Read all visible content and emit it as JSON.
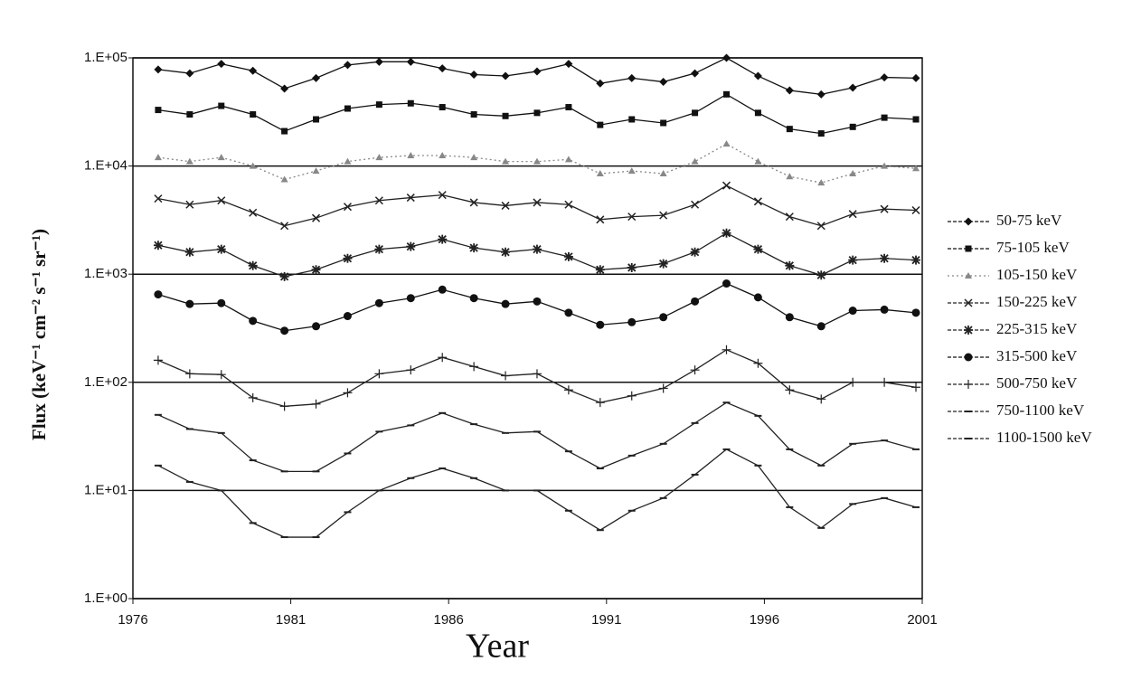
{
  "chart_data": {
    "type": "line",
    "x_label": "Year",
    "y_label": "Flux (keV⁻¹ cm⁻² s⁻¹ sr⁻¹)",
    "log_y": true,
    "grid": true,
    "legend": "right",
    "xlim": [
      1976,
      2001
    ],
    "xticks": [
      1976,
      1981,
      1986,
      1991,
      1996,
      2001
    ],
    "ylim": [
      1,
      100000
    ],
    "yticks": [
      {
        "value": 1,
        "label": "1.E+00"
      },
      {
        "value": 10,
        "label": "1.E+01"
      },
      {
        "value": 100,
        "label": "1.E+02"
      },
      {
        "value": 1000,
        "label": "1.E+03"
      },
      {
        "value": 10000,
        "label": "1.E+04"
      },
      {
        "value": 100000,
        "label": "1.E+05"
      }
    ],
    "x": [
      1976.8,
      1977.8,
      1978.8,
      1979.8,
      1980.8,
      1981.8,
      1982.8,
      1983.8,
      1984.8,
      1985.8,
      1986.8,
      1987.8,
      1988.8,
      1989.8,
      1990.8,
      1991.8,
      1992.8,
      1993.8,
      1994.8,
      1995.8,
      1996.8,
      1997.8,
      1998.8,
      1999.8,
      2000.8
    ],
    "series": [
      {
        "name": "50-75 keV",
        "color": "#111111",
        "marker": "diamond",
        "values": [
          78000,
          72000,
          88000,
          76000,
          52000,
          65000,
          86000,
          92000,
          92000,
          80000,
          70000,
          68000,
          75000,
          88000,
          58000,
          65000,
          60000,
          72000,
          100000,
          68000,
          50000,
          46000,
          53000,
          66000,
          65000
        ]
      },
      {
        "name": "75-105 keV",
        "color": "#111111",
        "marker": "square",
        "values": [
          33000,
          30000,
          36000,
          30000,
          21000,
          27000,
          34000,
          37000,
          38000,
          35000,
          30000,
          29000,
          31000,
          35000,
          24000,
          27000,
          25000,
          31000,
          46000,
          31000,
          22000,
          20000,
          23000,
          28000,
          27000
        ]
      },
      {
        "name": "105-150 keV",
        "color": "#888888",
        "marker": "triangle",
        "style": "dotted",
        "values": [
          12000,
          11000,
          12000,
          10000,
          7500,
          9000,
          11000,
          12000,
          12500,
          12500,
          12000,
          11000,
          11000,
          11500,
          8500,
          9000,
          8500,
          11000,
          16000,
          11000,
          8000,
          7000,
          8500,
          10000,
          9500
        ]
      },
      {
        "name": "150-225 keV",
        "color": "#222222",
        "marker": "x",
        "values": [
          5000,
          4400,
          4800,
          3700,
          2800,
          3300,
          4200,
          4800,
          5100,
          5400,
          4600,
          4300,
          4600,
          4400,
          3200,
          3400,
          3500,
          4400,
          6600,
          4700,
          3400,
          2800,
          3600,
          4000,
          3900
        ]
      },
      {
        "name": "225-315 keV",
        "color": "#222222",
        "marker": "asterisk",
        "values": [
          1850,
          1600,
          1700,
          1200,
          950,
          1100,
          1400,
          1700,
          1800,
          2100,
          1750,
          1600,
          1700,
          1450,
          1100,
          1150,
          1250,
          1600,
          2400,
          1700,
          1200,
          980,
          1350,
          1400,
          1350
        ]
      },
      {
        "name": "315-500 keV",
        "color": "#111111",
        "marker": "circle",
        "values": [
          650,
          530,
          540,
          370,
          300,
          330,
          410,
          540,
          600,
          720,
          600,
          530,
          560,
          440,
          340,
          360,
          400,
          560,
          820,
          610,
          400,
          330,
          460,
          470,
          440
        ]
      },
      {
        "name": "500-750 keV",
        "color": "#222222",
        "marker": "plus",
        "values": [
          160,
          120,
          118,
          72,
          60,
          63,
          80,
          120,
          130,
          170,
          140,
          115,
          120,
          85,
          65,
          75,
          88,
          130,
          200,
          150,
          85,
          70,
          100,
          100,
          90
        ]
      },
      {
        "name": "750-1100 keV",
        "color": "#222222",
        "marker": "dash",
        "values": [
          50,
          37,
          34,
          19,
          15,
          15,
          22,
          35,
          40,
          52,
          41,
          34,
          35,
          23,
          16,
          21,
          27,
          42,
          65,
          49,
          24,
          17,
          27,
          29,
          24
        ]
      },
      {
        "name": "1100-1500 keV",
        "color": "#222222",
        "marker": "dash",
        "values": [
          17,
          12,
          10,
          5,
          3.7,
          3.7,
          6.3,
          10,
          13,
          16,
          13,
          10,
          10,
          6.5,
          4.3,
          6.5,
          8.5,
          14,
          24,
          17,
          7,
          4.5,
          7.5,
          8.5,
          7
        ]
      }
    ]
  }
}
